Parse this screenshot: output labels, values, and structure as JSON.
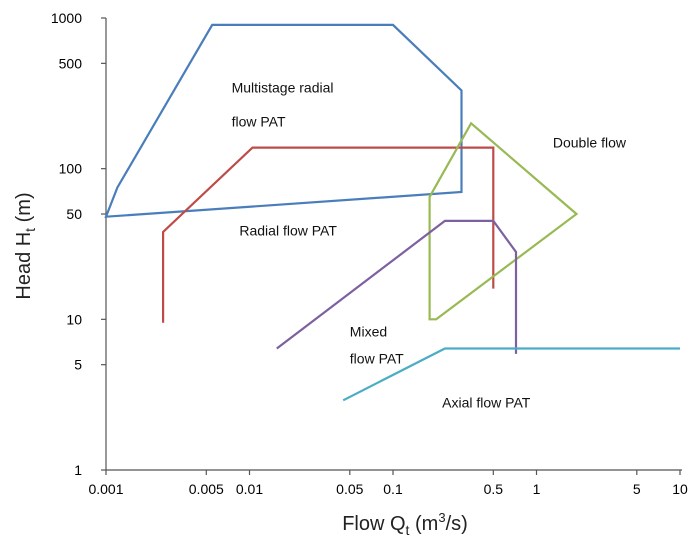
{
  "chart_data": {
    "type": "line",
    "title": "",
    "xlabel": "Flow Q",
    "xlabel_sub": "t",
    "xlabel_unit_open": " (m",
    "xlabel_unit_sup": "3",
    "xlabel_unit_close": "/s)",
    "ylabel": "Head H",
    "ylabel_sub": "t",
    "ylabel_unit": " (m)",
    "x_scale": "log",
    "y_scale": "log",
    "xlim": [
      0.001,
      10
    ],
    "ylim": [
      1,
      1000
    ],
    "grid": false,
    "xticks": [
      {
        "value": 0.001,
        "label": "0.001"
      },
      {
        "value": 0.005,
        "label": "0.005"
      },
      {
        "value": 0.01,
        "label": "0.01"
      },
      {
        "value": 0.05,
        "label": "0.05"
      },
      {
        "value": 0.1,
        "label": "0.1"
      },
      {
        "value": 0.5,
        "label": "0.5"
      },
      {
        "value": 1,
        "label": "1"
      },
      {
        "value": 5,
        "label": "5"
      },
      {
        "value": 10,
        "label": "10"
      }
    ],
    "yticks": [
      {
        "value": 1,
        "label": "1"
      },
      {
        "value": 5,
        "label": "5"
      },
      {
        "value": 10,
        "label": "10"
      },
      {
        "value": 50,
        "label": "50"
      },
      {
        "value": 100,
        "label": "100"
      },
      {
        "value": 500,
        "label": "500"
      },
      {
        "value": 1000,
        "label": "1000"
      }
    ],
    "series": [
      {
        "color": "#4a7ebb",
        "closed": true,
        "points": [
          [
            0.001,
            48
          ],
          [
            0.0012,
            75
          ],
          [
            0.0055,
            900
          ],
          [
            0.1,
            900
          ],
          [
            0.3,
            330
          ],
          [
            0.3,
            70
          ],
          [
            0.001,
            48
          ]
        ]
      },
      {
        "color": "#be4b48",
        "closed": false,
        "points": [
          [
            0.0025,
            9.5
          ],
          [
            0.0025,
            38
          ],
          [
            0.0105,
            138
          ],
          [
            0.5,
            138
          ],
          [
            0.5,
            16
          ]
        ]
      },
      {
        "color": "#98b954",
        "closed": true,
        "points": [
          [
            0.35,
            200
          ],
          [
            1.9,
            50
          ],
          [
            0.2,
            10
          ],
          [
            0.18,
            10
          ],
          [
            0.18,
            65
          ],
          [
            0.35,
            200
          ]
        ]
      },
      {
        "color": "#7d60a0",
        "closed": false,
        "points": [
          [
            0.0155,
            6.4
          ],
          [
            0.23,
            45
          ],
          [
            0.5,
            45
          ],
          [
            0.72,
            28
          ],
          [
            0.72,
            5.9
          ]
        ]
      },
      {
        "color": "#4bacc6",
        "closed": false,
        "points": [
          [
            0.045,
            2.9
          ],
          [
            0.23,
            6.4
          ],
          [
            10,
            6.4
          ]
        ]
      }
    ],
    "annotations": [
      {
        "text": "Multistage radial",
        "x": 0.0075,
        "y": 320
      },
      {
        "text": "flow PAT",
        "x": 0.0075,
        "y": 190
      },
      {
        "text": "Radial flow PAT",
        "x": 0.0085,
        "y": 36
      },
      {
        "text": "Double flow",
        "x": 1.3,
        "y": 138
      },
      {
        "text": "Mixed",
        "x": 0.05,
        "y": 7.7
      },
      {
        "text": "flow PAT",
        "x": 0.05,
        "y": 5.1
      },
      {
        "text": "Axial flow PAT",
        "x": 0.22,
        "y": 2.6
      }
    ]
  }
}
